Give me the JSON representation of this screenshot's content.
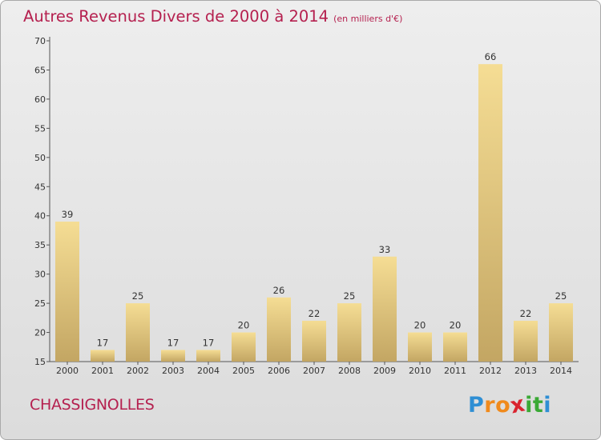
{
  "header": {
    "title": "Autres Revenus Divers de 2000 à 2014",
    "unit": "(en milliers d'€)"
  },
  "footer": {
    "commune": "CHASSIGNOLLES",
    "logo_letters": [
      "P",
      "r",
      "o",
      "x",
      "i",
      "t",
      "i"
    ],
    "logo_colors": [
      "#2f8fd4",
      "#f08a1c",
      "#f08a1c",
      "#d9232f",
      "#3aa935",
      "#3aa935",
      "#2f8fd4"
    ]
  },
  "colors": {
    "title": "#b5204f",
    "bar_light": "#f5dd94",
    "bar_dark": "#c3a663",
    "background": "#e4e4e4"
  },
  "chart_data": {
    "type": "bar",
    "categories": [
      "2000",
      "2001",
      "2002",
      "2003",
      "2004",
      "2005",
      "2006",
      "2007",
      "2008",
      "2009",
      "2010",
      "2011",
      "2012",
      "2013",
      "2014"
    ],
    "values": [
      39,
      17,
      25,
      17,
      17,
      20,
      26,
      22,
      25,
      33,
      20,
      20,
      66,
      22,
      25
    ],
    "ylim": [
      15,
      70
    ],
    "yticks": [
      15,
      20,
      25,
      30,
      35,
      40,
      45,
      50,
      55,
      60,
      65,
      70
    ],
    "grid": false,
    "legend": "none"
  }
}
